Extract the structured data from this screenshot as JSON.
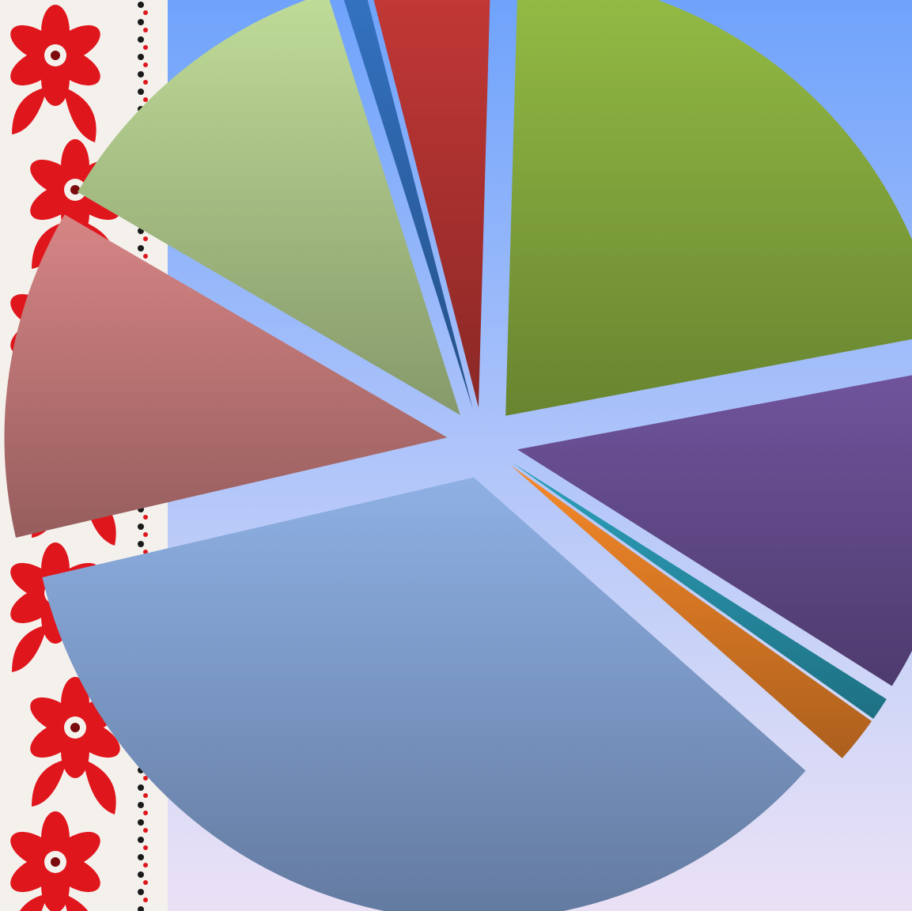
{
  "chart_data": {
    "type": "pie",
    "start_angle_deg": 1.6,
    "direction": "clockwise",
    "exploded": true,
    "legend": "none",
    "data_labels": "none",
    "slices": [
      {
        "value": 22.8,
        "color": "#85a93e"
      },
      {
        "value": 12.6,
        "color": "#644b8c"
      },
      {
        "value": 0.9,
        "color": "#278fa7"
      },
      {
        "value": 1.8,
        "color": "#dc7a25"
      },
      {
        "value": 36.8,
        "color": "#7f9dcc"
      },
      {
        "value": 12.7,
        "color": "#c07777"
      },
      {
        "value": 12.4,
        "color": "#abc488"
      },
      {
        "value": 0.9,
        "color": "#2e67ad"
      },
      {
        "value": 4.7,
        "color": "#b13331"
      }
    ]
  },
  "decoration": {
    "border_pattern": "red-floral-embroidery-icon",
    "border_color": "#e0161d"
  }
}
